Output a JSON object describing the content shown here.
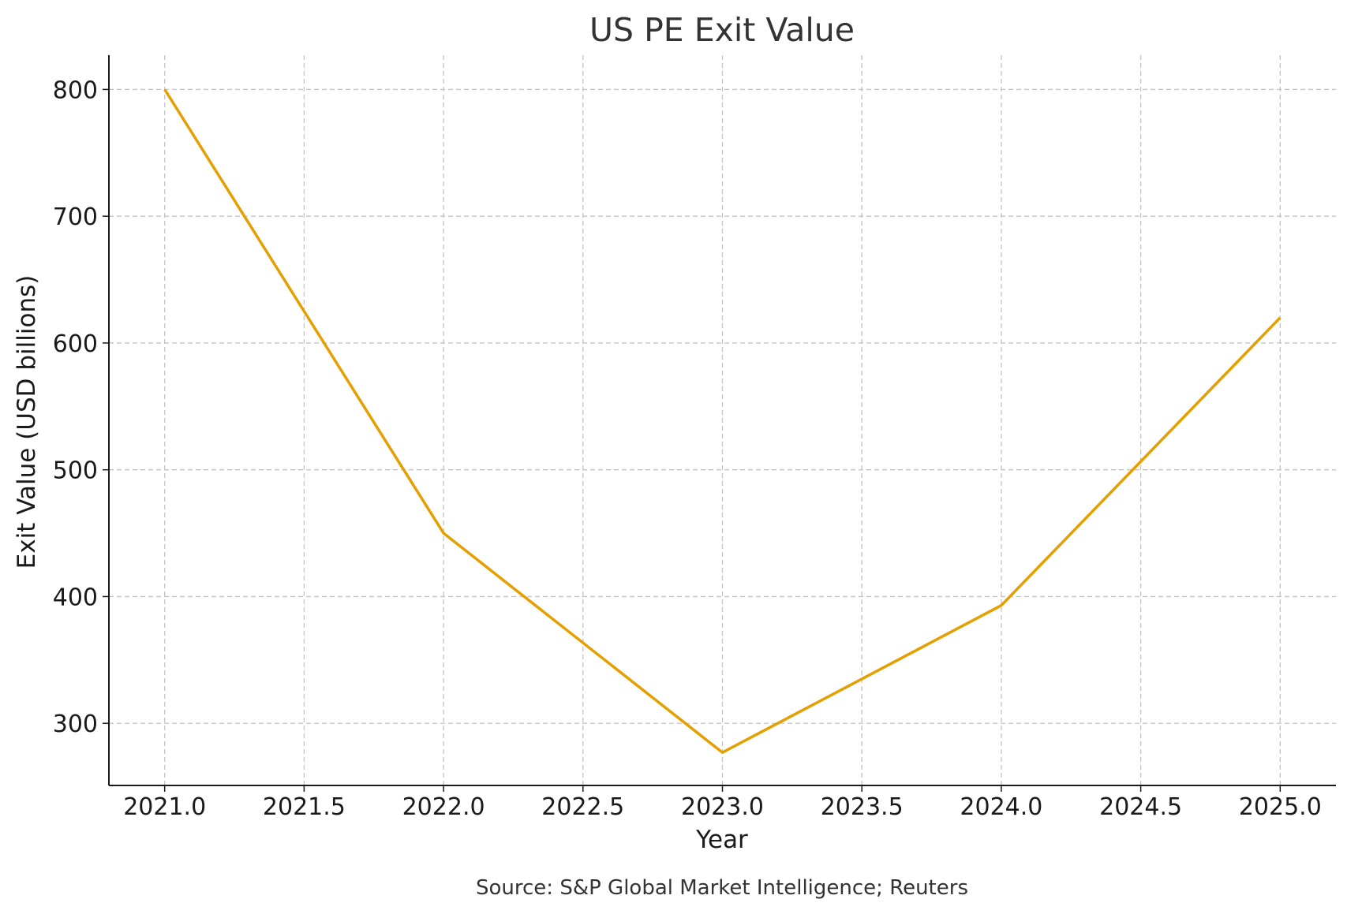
{
  "chart_data": {
    "type": "line",
    "title": "US PE Exit Value",
    "xlabel": "Year",
    "ylabel": "Exit Value (USD billions)",
    "source": "Source: S&P Global Market Intelligence; Reuters",
    "xlim": [
      2020.8,
      2025.2
    ],
    "ylim": [
      251,
      827
    ],
    "xticks": [
      2021.0,
      2021.5,
      2022.0,
      2022.5,
      2023.0,
      2023.5,
      2024.0,
      2024.5,
      2025.0
    ],
    "xtick_labels": [
      "2021.0",
      "2021.5",
      "2022.0",
      "2022.5",
      "2023.0",
      "2023.5",
      "2024.0",
      "2024.5",
      "2025.0"
    ],
    "yticks": [
      300,
      400,
      500,
      600,
      700,
      800
    ],
    "ytick_labels": [
      "300",
      "400",
      "500",
      "600",
      "700",
      "800"
    ],
    "grid": true,
    "series": [
      {
        "color": "#E69F00",
        "x": [
          2021,
          2022,
          2023,
          2024,
          2025
        ],
        "y": [
          800,
          450,
          277,
          393,
          620
        ]
      }
    ]
  }
}
